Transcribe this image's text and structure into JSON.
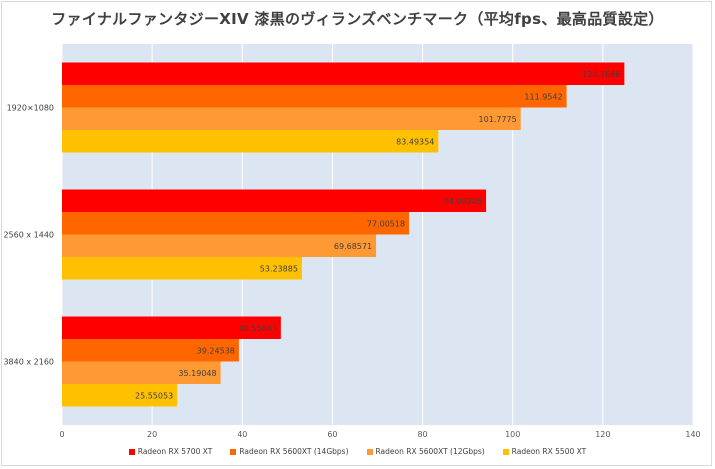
{
  "chart_data": {
    "type": "bar",
    "orientation": "horizontal",
    "title": "ファイナルファンタジーXIV 漆黒のヴィランズベンチマーク（平均fps、最高品質設定）",
    "categories": [
      "1920×1080",
      "2560 x 1440",
      "3840 x 2160"
    ],
    "series": [
      {
        "name": "Radeon RX 5700 XT",
        "color": "#ff0000",
        "values": [
          124.7686,
          94.09205,
          48.55643
        ]
      },
      {
        "name": "Radeon RX 5600XT (14Gbps)",
        "color": "#ff6600",
        "values": [
          111.9542,
          77.00518,
          39.24538
        ]
      },
      {
        "name": "Radeon RX 5600XT (12Gbps)",
        "color": "#ff9933",
        "values": [
          101.7775,
          69.68571,
          35.19048
        ]
      },
      {
        "name": "Radeon RX 5500 XT",
        "color": "#ffc000",
        "values": [
          83.49354,
          53.23885,
          25.55053
        ]
      }
    ],
    "xlim": [
      0,
      140
    ],
    "xticks": [
      0,
      20,
      40,
      60,
      80,
      100,
      120,
      140
    ],
    "xlabel": "",
    "ylabel": "",
    "grid": true,
    "legend": "bottom",
    "plot_background": "#dce6f2"
  }
}
